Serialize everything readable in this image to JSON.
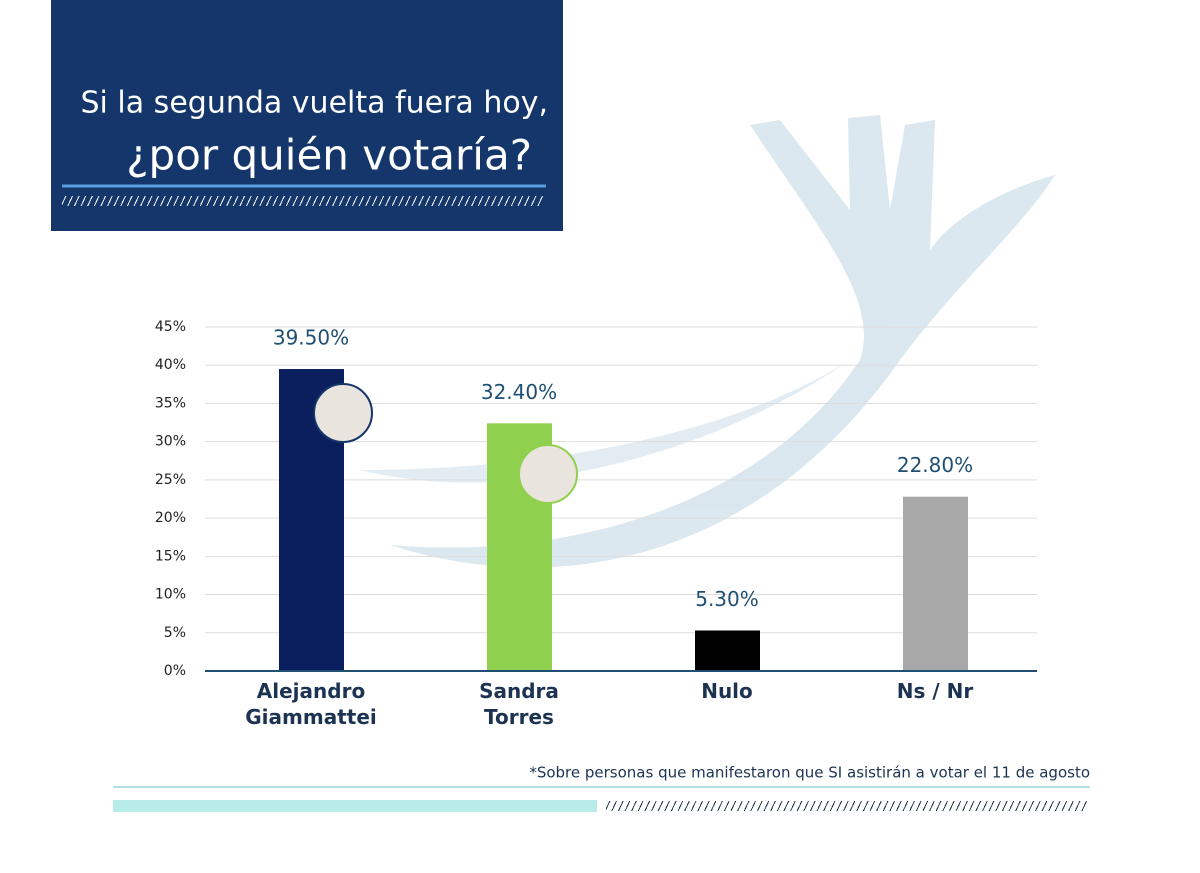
{
  "chart_data": {
    "type": "bar",
    "title_lines": [
      "Si la segunda vuelta fuera hoy,",
      "¿por quién votaría?"
    ],
    "footnote": "*Sobre personas que manifestaron que SI asistirán a votar el 11 de agosto",
    "categories": [
      "Alejandro Giammattei",
      "Sandra Torres",
      "Nulo",
      "Ns / Nr"
    ],
    "values": [
      39.5,
      32.4,
      5.3,
      22.8
    ],
    "value_labels": [
      "39.50%",
      "32.40%",
      "5.30%",
      "22.80%"
    ],
    "colors": [
      "#0b1f5e",
      "#8fd14f",
      "#000000",
      "#a8a8a8"
    ],
    "ylim": [
      0,
      45
    ],
    "yticks": [
      {
        "value": 0,
        "label": "0%"
      },
      {
        "value": 5,
        "label": "5%"
      },
      {
        "value": 10,
        "label": "10%"
      },
      {
        "value": 15,
        "label": "15%"
      },
      {
        "value": 20,
        "label": "20%"
      },
      {
        "value": 25,
        "label": "25%"
      },
      {
        "value": 30,
        "label": "30%"
      },
      {
        "value": 35,
        "label": "35%"
      },
      {
        "value": 40,
        "label": "40%"
      },
      {
        "value": 45,
        "label": "45%"
      }
    ],
    "grid": true
  }
}
